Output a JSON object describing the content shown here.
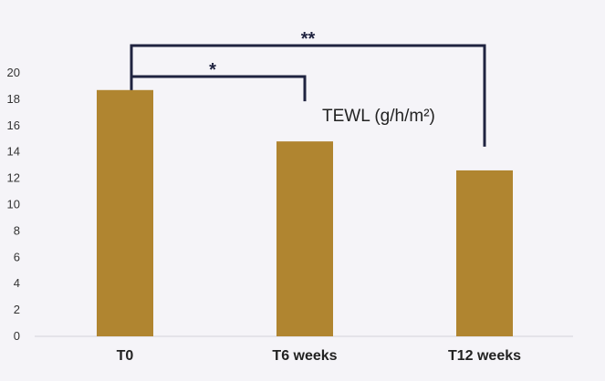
{
  "chart_data": {
    "type": "bar",
    "categories": [
      "T0",
      "T6 weeks",
      "T12 weeks"
    ],
    "series": [
      {
        "name": "TEWL (g/h/m²)",
        "values": [
          18.7,
          14.8,
          12.6
        ]
      }
    ],
    "yticks": [
      "0",
      "2",
      "4",
      "6",
      "8",
      "10",
      "12",
      "14",
      "16",
      "18",
      "20"
    ],
    "ylim": [
      0,
      20
    ],
    "grid": false,
    "bar_color": "#b08530",
    "bracket_color": "#1f2340",
    "significance": [
      {
        "from": "T0",
        "to": "T6 weeks",
        "label": "*"
      },
      {
        "from": "T0",
        "to": "T12 weeks",
        "label": "**"
      }
    ]
  }
}
